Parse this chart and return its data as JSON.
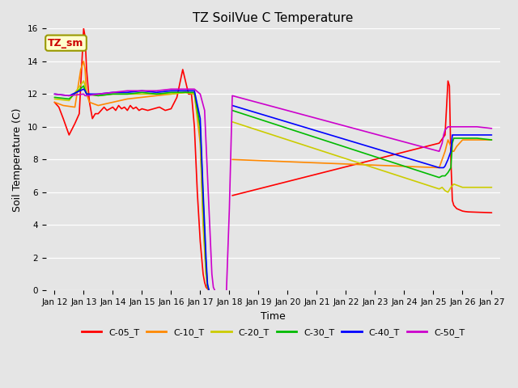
{
  "title": "TZ SoilVue C Temperature",
  "xlabel": "Time",
  "ylabel": "Soil Temperature (C)",
  "ylim": [
    0,
    16
  ],
  "background_color": "#e5e5e5",
  "plot_bg_color": "#e5e5e5",
  "legend_label": "TZ_sm",
  "legend_box_color": "#ffffcc",
  "legend_box_edge": "#999900",
  "series_order": [
    "C-05_T",
    "C-10_T",
    "C-20_T",
    "C-30_T",
    "C-40_T",
    "C-50_T"
  ],
  "series_colors": {
    "C-05_T": "#ff0000",
    "C-10_T": "#ff8800",
    "C-20_T": "#cccc00",
    "C-30_T": "#00bb00",
    "C-40_T": "#0000ff",
    "C-50_T": "#cc00cc"
  },
  "linewidth": 1.2,
  "tick_dates": [
    "Jan 12",
    "Jan 13",
    "Jan 14",
    "Jan 15",
    "Jan 16",
    "Jan 17",
    "Jan 18",
    "Jan 19",
    "Jan 20",
    "Jan 21",
    "Jan 22",
    "Jan 23",
    "Jan 24",
    "Jan 25",
    "Jan 26",
    "Jan 27"
  ],
  "yticks": [
    0,
    2,
    4,
    6,
    8,
    10,
    12,
    14,
    16
  ],
  "grid_color": "#ffffff",
  "title_fontsize": 11,
  "axis_fontsize": 9,
  "tick_fontsize": 7.5,
  "legend_fontsize": 8
}
